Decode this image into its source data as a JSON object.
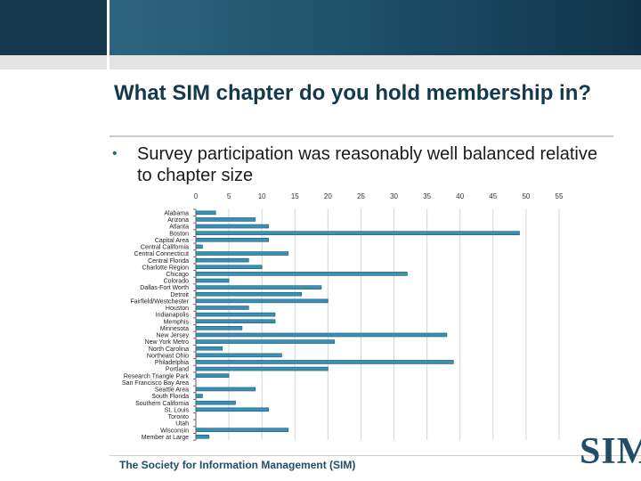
{
  "slide": {
    "title": "What SIM chapter do you hold membership in?",
    "bullet": "Survey participation was reasonably well balanced relative to chapter size",
    "footer": "The Society for Information Management (SIM)",
    "logo": "SIM"
  },
  "colors": {
    "bar_fill": "#3a8fb5",
    "bar_stroke": "#1f5a75",
    "header_dark": "#14384c",
    "accent": "#1f4e66"
  },
  "chart_data": {
    "type": "bar",
    "orientation": "horizontal",
    "title": "",
    "xlabel": "",
    "ylabel": "",
    "xlim": [
      0,
      55
    ],
    "xticks": [
      0,
      5,
      10,
      15,
      20,
      25,
      30,
      35,
      40,
      45,
      50,
      55
    ],
    "grid": true,
    "categories": [
      "Alabama",
      "Arizona",
      "Atlanta",
      "Boston",
      "Capital Area",
      "Central California",
      "Central Connecticut",
      "Central Florida",
      "Charlotte Region",
      "Chicago",
      "Colorado",
      "Dallas-Fort Worth",
      "Detroit",
      "Fairfield/Westchester",
      "Houston",
      "Indianapolis",
      "Memphis",
      "Minnesota",
      "New Jersey",
      "New York Metro",
      "North Carolina",
      "Northeast Ohio",
      "Philadelphia",
      "Portland",
      "Research Triangle Park",
      "San Francisco Bay Area",
      "Seattle Area",
      "South Florida",
      "Southern California",
      "St. Louis",
      "Toronto",
      "Utah",
      "Wisconsin",
      "Member at Large"
    ],
    "values": [
      3,
      9,
      11,
      49,
      11,
      1,
      14,
      8,
      10,
      32,
      5,
      19,
      16,
      20,
      8,
      12,
      12,
      7,
      38,
      21,
      4,
      13,
      39,
      20,
      5,
      0,
      9,
      1,
      6,
      11,
      0,
      0,
      14,
      2
    ]
  }
}
